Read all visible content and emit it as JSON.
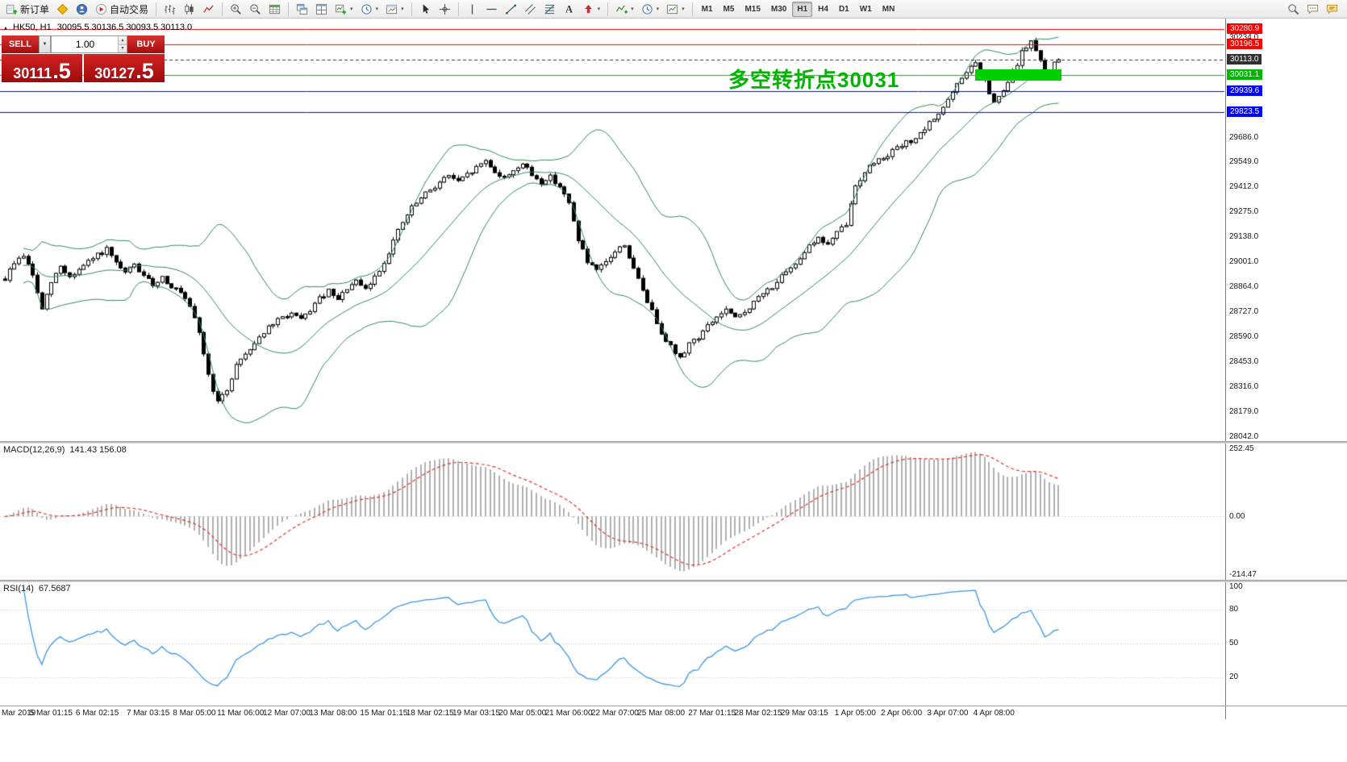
{
  "toolbar": {
    "groups": [
      {
        "buttons": [
          {
            "name": "new-order",
            "icon": "new-order",
            "label": "新订单"
          },
          {
            "name": "metaeditor",
            "icon": "metaeditor"
          },
          {
            "name": "mql-community",
            "icon": "community"
          },
          {
            "name": "autotrading",
            "icon": "autotrading",
            "label": "自动交易"
          }
        ]
      },
      {
        "buttons": [
          {
            "name": "bar-chart",
            "icon": "bar-chart"
          },
          {
            "name": "candlestick-chart",
            "icon": "candlestick"
          },
          {
            "name": "line-chart",
            "icon": "line-chart"
          }
        ]
      },
      {
        "buttons": [
          {
            "name": "zoom-in",
            "icon": "zoom-in"
          },
          {
            "name": "zoom-out",
            "icon": "zoom-out"
          },
          {
            "name": "market-depth",
            "icon": "table-grid"
          }
        ]
      },
      {
        "buttons": [
          {
            "name": "cascade-windows",
            "icon": "cascade"
          },
          {
            "name": "tile-windows",
            "icon": "tile"
          },
          {
            "name": "new-chart",
            "icon": "new-chart",
            "dropdown": true
          },
          {
            "name": "profiles",
            "icon": "clock",
            "dropdown": true
          },
          {
            "name": "templates",
            "icon": "template",
            "dropdown": true
          }
        ]
      },
      {
        "buttons": [
          {
            "name": "cursor",
            "icon": "cursor"
          },
          {
            "name": "crosshair",
            "icon": "crosshair"
          }
        ]
      },
      {
        "buttons": [
          {
            "name": "vertical-line",
            "icon": "vline"
          },
          {
            "name": "horizontal-line",
            "icon": "hline"
          },
          {
            "name": "trendline",
            "icon": "trendline"
          },
          {
            "name": "equidistant-channel",
            "icon": "channel"
          },
          {
            "name": "fibonacci",
            "icon": "fibonacci"
          },
          {
            "name": "text-label",
            "icon": "text"
          },
          {
            "name": "arrows",
            "icon": "shapes",
            "dropdown": true
          }
        ]
      },
      {
        "buttons": [
          {
            "name": "indicators",
            "icon": "indicator-plus",
            "dropdown": true
          },
          {
            "name": "periods",
            "icon": "clock",
            "dropdown": true
          },
          {
            "name": "chart-properties",
            "icon": "chart-settings",
            "dropdown": true
          }
        ]
      }
    ],
    "timeframes": [
      "M1",
      "M5",
      "M15",
      "M30",
      "H1",
      "H4",
      "D1",
      "W1",
      "MN"
    ],
    "active_timeframe": "H1",
    "right_buttons": [
      {
        "name": "search",
        "icon": "magnifier"
      },
      {
        "name": "chat",
        "icon": "chat"
      },
      {
        "name": "notifications",
        "icon": "chat2"
      }
    ]
  },
  "chart": {
    "title": {
      "collapse_icon": "▴",
      "symbol_period": "HK50, H1",
      "ohlc": "30095.5 30136.5 30093.5 30113.0"
    },
    "trade_panel": {
      "sell_label": "SELL",
      "buy_label": "BUY",
      "volume": "1.00",
      "sell_price_main": "30111",
      "sell_price_frac": ".5",
      "buy_price_main": "30127",
      "buy_price_frac": ".5"
    },
    "annotation": {
      "text": "多空转折点30031",
      "color": "#00b400"
    },
    "price_axis": {
      "top_price": 30330,
      "bottom_price": 28020,
      "ticks": [
        "30234.0",
        "29686.0",
        "29549.0",
        "29412.0",
        "29275.0",
        "29138.0",
        "29001.0",
        "28864.0",
        "28727.0",
        "28590.0",
        "28453.0",
        "28316.0",
        "28179.0",
        "28042.0"
      ],
      "levels": [
        {
          "label": "30280.9",
          "price": 30280.9,
          "color": "#ff0000"
        },
        {
          "label": "30196.5",
          "price": 30196.5,
          "color": "#ff0000"
        },
        {
          "label": "30113.0",
          "price": 30113.0,
          "color": "#303030",
          "current": true
        },
        {
          "label": "30031.1",
          "price": 30031.1,
          "color": "#00b800"
        },
        {
          "label": "29939.6",
          "price": 29939.6,
          "color": "#0000ff"
        },
        {
          "label": "29823.5",
          "price": 29823.5,
          "color": "#0000ff"
        }
      ]
    },
    "highlight_bar": {
      "price": 30031.1,
      "color": "#00d000",
      "start_index": 210,
      "end_index": 228
    },
    "time_axis": {
      "labels": [
        "Mar 2019",
        "5 Mar 01:15",
        "6 Mar 02:15",
        "7 Mar 03:15",
        "8 Mar 05:00",
        "11 Mar 06:00",
        "12 Mar 07:00",
        "13 Mar 08:00",
        "15 Mar 01:15",
        "18 Mar 02:15",
        "19 Mar 03:15",
        "20 Mar 05:00",
        "21 Mar 06:00",
        "22 Mar 07:00",
        "25 Mar 08:00",
        "27 Mar 01:15",
        "28 Mar 02:15",
        "29 Mar 03:15",
        "1 Apr 05:00",
        "2 Apr 06:00",
        "3 Apr 07:00",
        "4 Apr 08:00"
      ],
      "indices": [
        0,
        10,
        20,
        31,
        41,
        51,
        61,
        71,
        82,
        92,
        102,
        112,
        122,
        132,
        142,
        153,
        163,
        173,
        184,
        194,
        204,
        214
      ]
    },
    "series": {
      "count": 229,
      "seed": 9,
      "noise": 28,
      "wick": 18,
      "last_close": 30113.0,
      "waypoints": [
        [
          0,
          28910
        ],
        [
          2,
          29000
        ],
        [
          4,
          29040
        ],
        [
          6,
          28930
        ],
        [
          8,
          28740
        ],
        [
          10,
          28890
        ],
        [
          12,
          28980
        ],
        [
          14,
          28920
        ],
        [
          16,
          28960
        ],
        [
          18,
          29000
        ],
        [
          20,
          29040
        ],
        [
          22,
          29070
        ],
        [
          24,
          28990
        ],
        [
          26,
          28940
        ],
        [
          28,
          28990
        ],
        [
          30,
          28920
        ],
        [
          32,
          28880
        ],
        [
          34,
          28920
        ],
        [
          36,
          28870
        ],
        [
          38,
          28830
        ],
        [
          40,
          28750
        ],
        [
          42,
          28620
        ],
        [
          44,
          28380
        ],
        [
          46,
          28230
        ],
        [
          48,
          28300
        ],
        [
          50,
          28440
        ],
        [
          52,
          28500
        ],
        [
          54,
          28560
        ],
        [
          56,
          28620
        ],
        [
          58,
          28660
        ],
        [
          60,
          28700
        ],
        [
          62,
          28720
        ],
        [
          64,
          28680
        ],
        [
          66,
          28740
        ],
        [
          68,
          28800
        ],
        [
          70,
          28840
        ],
        [
          72,
          28790
        ],
        [
          74,
          28860
        ],
        [
          76,
          28890
        ],
        [
          78,
          28850
        ],
        [
          80,
          28920
        ],
        [
          82,
          29000
        ],
        [
          84,
          29120
        ],
        [
          86,
          29220
        ],
        [
          88,
          29300
        ],
        [
          90,
          29350
        ],
        [
          92,
          29400
        ],
        [
          94,
          29440
        ],
        [
          96,
          29480
        ],
        [
          98,
          29440
        ],
        [
          100,
          29480
        ],
        [
          102,
          29520
        ],
        [
          104,
          29560
        ],
        [
          106,
          29500
        ],
        [
          108,
          29460
        ],
        [
          110,
          29510
        ],
        [
          112,
          29540
        ],
        [
          114,
          29480
        ],
        [
          116,
          29440
        ],
        [
          118,
          29470
        ],
        [
          120,
          29420
        ],
        [
          122,
          29320
        ],
        [
          124,
          29130
        ],
        [
          126,
          29000
        ],
        [
          128,
          28950
        ],
        [
          130,
          29000
        ],
        [
          132,
          29060
        ],
        [
          134,
          29100
        ],
        [
          136,
          28960
        ],
        [
          138,
          28850
        ],
        [
          140,
          28730
        ],
        [
          142,
          28620
        ],
        [
          144,
          28540
        ],
        [
          146,
          28470
        ],
        [
          148,
          28560
        ],
        [
          150,
          28590
        ],
        [
          152,
          28650
        ],
        [
          154,
          28700
        ],
        [
          156,
          28740
        ],
        [
          158,
          28690
        ],
        [
          160,
          28730
        ],
        [
          162,
          28780
        ],
        [
          164,
          28830
        ],
        [
          166,
          28870
        ],
        [
          168,
          28920
        ],
        [
          170,
          28960
        ],
        [
          172,
          29030
        ],
        [
          174,
          29100
        ],
        [
          176,
          29130
        ],
        [
          178,
          29100
        ],
        [
          180,
          29160
        ],
        [
          182,
          29210
        ],
        [
          184,
          29420
        ],
        [
          186,
          29500
        ],
        [
          188,
          29550
        ],
        [
          190,
          29580
        ],
        [
          192,
          29610
        ],
        [
          194,
          29640
        ],
        [
          196,
          29670
        ],
        [
          198,
          29700
        ],
        [
          200,
          29760
        ],
        [
          202,
          29820
        ],
        [
          204,
          29890
        ],
        [
          206,
          29970
        ],
        [
          208,
          30050
        ],
        [
          210,
          30090
        ],
        [
          212,
          29990
        ],
        [
          214,
          29870
        ],
        [
          216,
          29940
        ],
        [
          218,
          30040
        ],
        [
          220,
          30150
        ],
        [
          222,
          30215
        ],
        [
          224,
          30100
        ],
        [
          225,
          30020
        ],
        [
          226,
          30060
        ],
        [
          227,
          30090
        ],
        [
          228,
          30113
        ]
      ]
    },
    "bollinger": {
      "period": 20,
      "deviation": 2,
      "color": "#2e8b57"
    },
    "candle_colors": {
      "up_fill": "#ffffff",
      "down_fill": "#000000",
      "outline": "#000000"
    }
  },
  "macd_panel": {
    "label": "MACD(12,26,9)",
    "values": "141.43 156.08",
    "axis_labels": [
      "252.45",
      "0.00",
      "-214.47"
    ],
    "axis_max": 252.45,
    "axis_min": -214.47,
    "histogram_color": "#b0b0b0",
    "signal_color": "#e53030"
  },
  "rsi_panel": {
    "label": "RSI(14)",
    "value": "67.5687",
    "axis_labels": [
      100,
      80,
      50,
      20
    ],
    "levels": [
      80,
      50,
      20
    ],
    "line_color": "#3a97e8"
  }
}
